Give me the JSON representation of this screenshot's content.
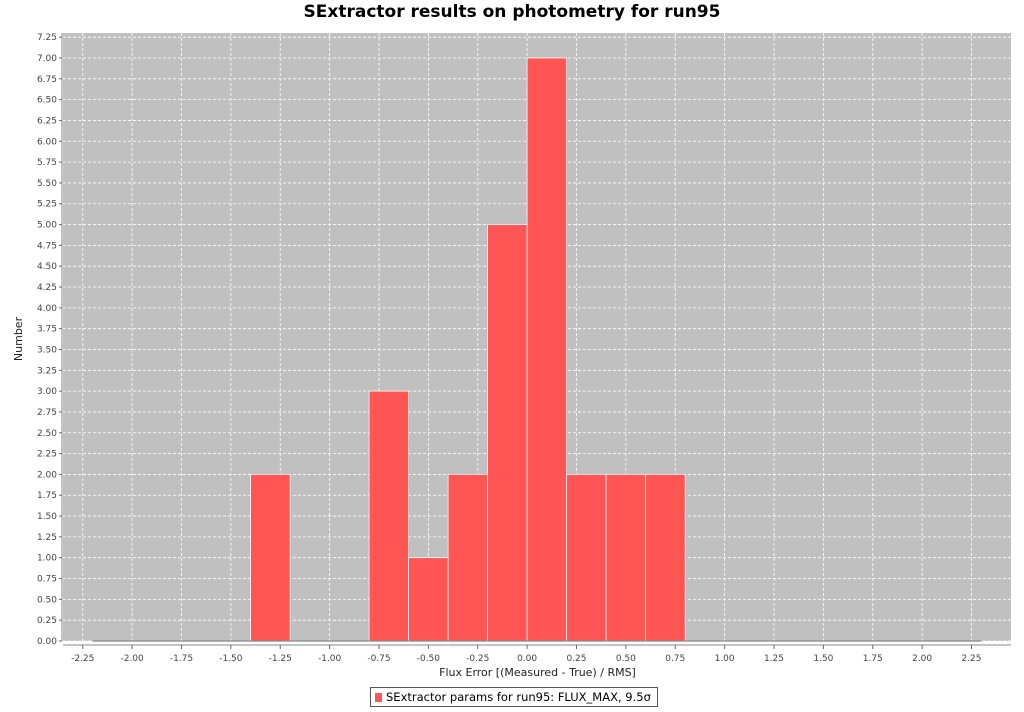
{
  "chart_data": {
    "type": "bar",
    "title": "SExtractor results on photometry for run95",
    "xlabel": "Flux Error [(Measured - True) / RMS]",
    "ylabel": "Number",
    "xlim": [
      -2.35,
      2.45
    ],
    "ylim": [
      0,
      7.3
    ],
    "x_ticks": [
      "-2.25",
      "-2.00",
      "-1.75",
      "-1.50",
      "-1.25",
      "-1.00",
      "-0.75",
      "-0.50",
      "-0.25",
      "0.00",
      "0.25",
      "0.50",
      "0.75",
      "1.00",
      "1.25",
      "1.50",
      "1.75",
      "2.00",
      "2.25"
    ],
    "y_ticks": [
      "0.00",
      "0.25",
      "0.50",
      "0.75",
      "1.00",
      "1.25",
      "1.50",
      "1.75",
      "2.00",
      "2.25",
      "2.50",
      "2.75",
      "3.00",
      "3.25",
      "3.50",
      "3.75",
      "4.00",
      "4.25",
      "4.50",
      "4.75",
      "5.00",
      "5.25",
      "5.50",
      "5.75",
      "6.00",
      "6.25",
      "6.50",
      "6.75",
      "7.00",
      "7.25"
    ],
    "grid": true,
    "legend_position": "bottom",
    "series": [
      {
        "name": "SExtractor params for run95: FLUX_MAX, 9.5σ",
        "color": "#ff5555",
        "bins": [
          {
            "x0": -1.4,
            "x1": -1.2,
            "count": 2
          },
          {
            "x0": -0.8,
            "x1": -0.6,
            "count": 3
          },
          {
            "x0": -0.6,
            "x1": -0.4,
            "count": 1
          },
          {
            "x0": -0.4,
            "x1": -0.2,
            "count": 2
          },
          {
            "x0": -0.2,
            "x1": 0.0,
            "count": 5
          },
          {
            "x0": 0.0,
            "x1": 0.2,
            "count": 7
          },
          {
            "x0": 0.2,
            "x1": 0.4,
            "count": 2
          },
          {
            "x0": 0.4,
            "x1": 0.6,
            "count": 2
          },
          {
            "x0": 0.6,
            "x1": 0.8,
            "count": 2
          }
        ]
      }
    ]
  },
  "colors": {
    "plot_background": "#c0c0c0",
    "gridline": "#ffffff",
    "bar": "#ff5555"
  }
}
